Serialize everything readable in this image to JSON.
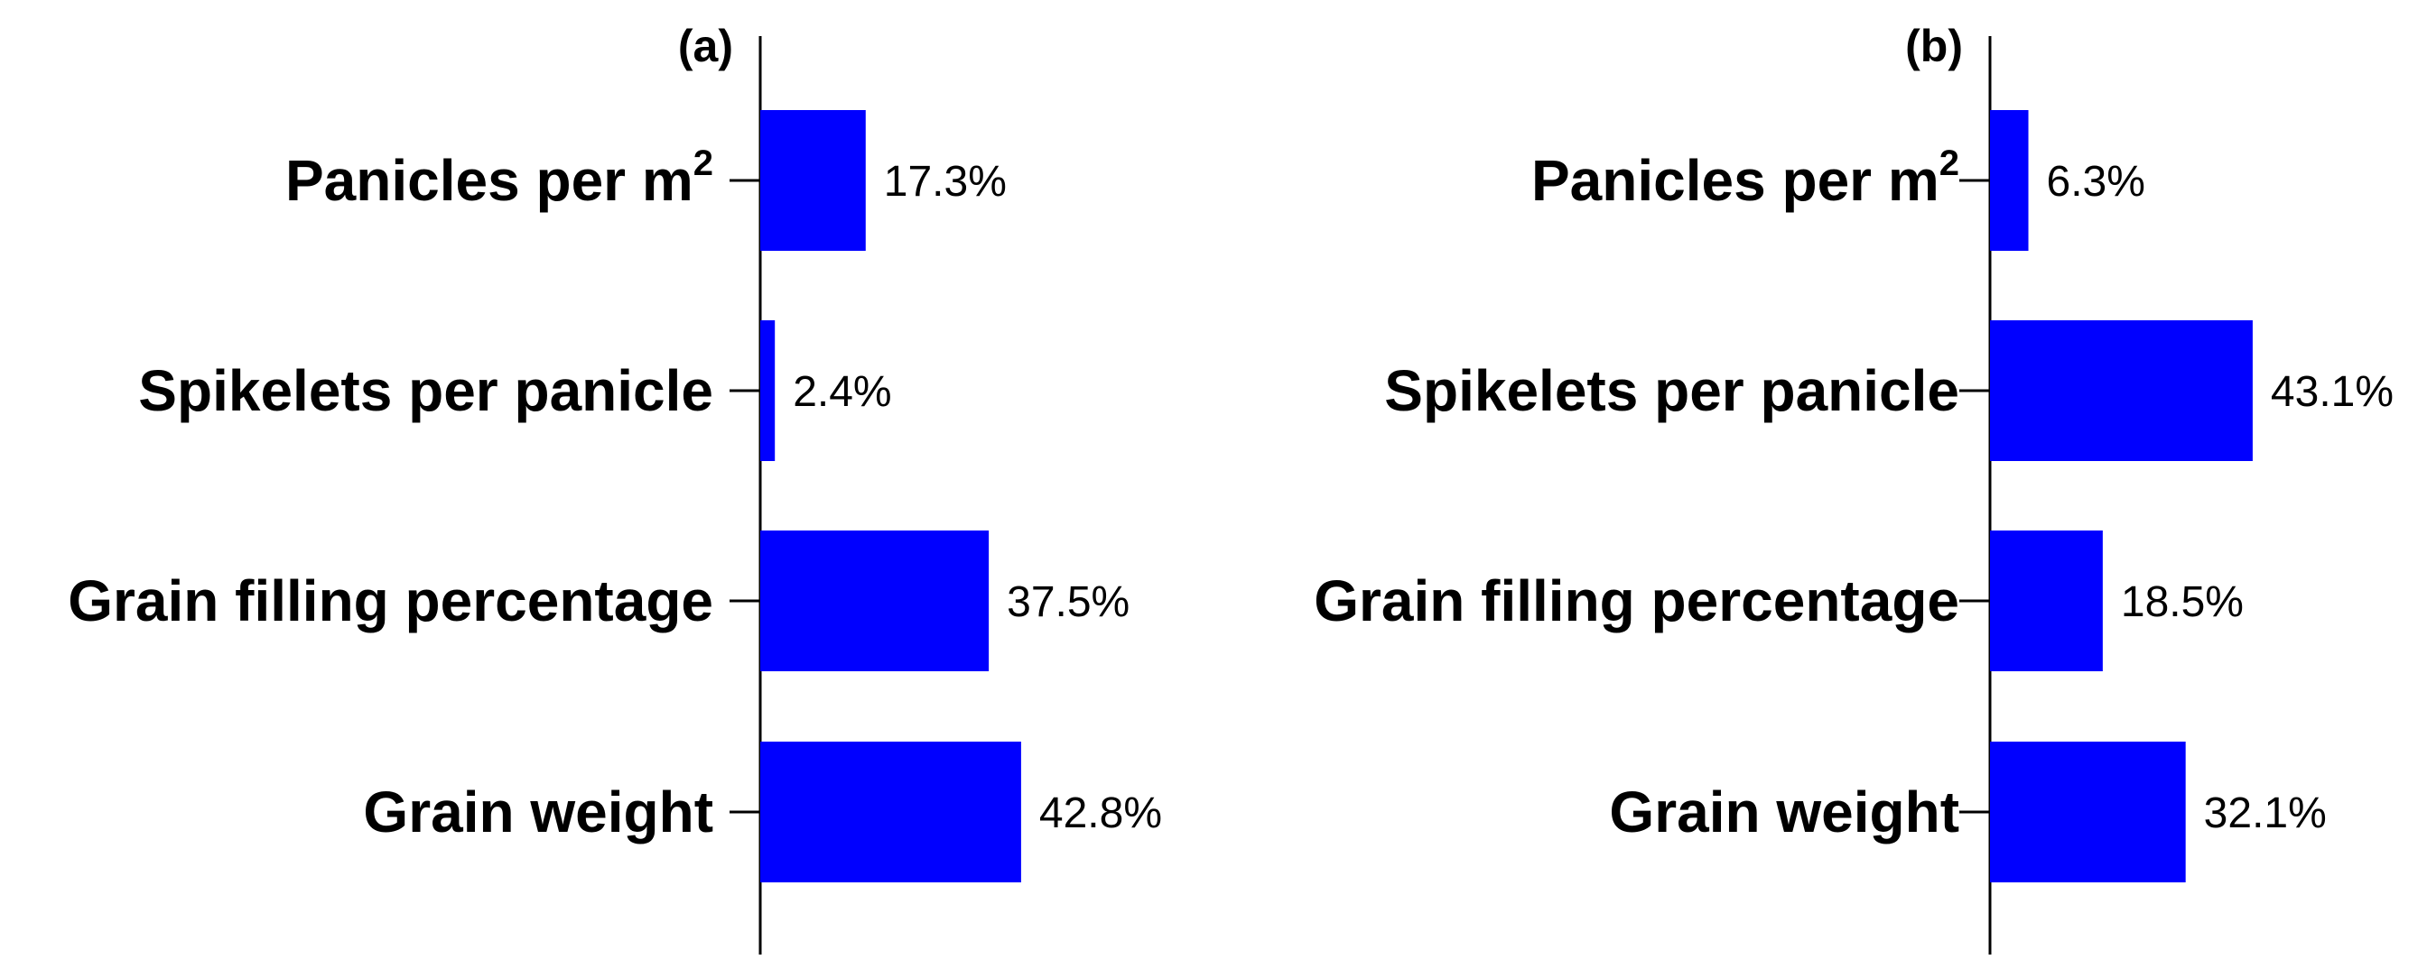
{
  "chart_data": [
    {
      "type": "bar",
      "orientation": "horizontal",
      "panel_label": "(a)",
      "categories": [
        "Panicles per m",
        "Spikelets per panicle",
        "Grain filling percentage",
        "Grain weight"
      ],
      "category_superscripts": [
        "2",
        "",
        "",
        ""
      ],
      "values": [
        17.3,
        2.4,
        37.5,
        42.8
      ],
      "value_labels": [
        "17.3%",
        "2.4%",
        "37.5%",
        "42.8%"
      ],
      "bar_color": "#0000ff",
      "xlim": [
        0,
        100
      ],
      "grid": false
    },
    {
      "type": "bar",
      "orientation": "horizontal",
      "panel_label": "(b)",
      "categories": [
        "Panicles per m",
        "Spikelets per panicle",
        "Grain filling percentage",
        "Grain weight"
      ],
      "category_superscripts": [
        "2",
        "",
        "",
        ""
      ],
      "values": [
        6.3,
        43.1,
        18.5,
        32.1
      ],
      "value_labels": [
        "6.3%",
        "43.1%",
        "18.5%",
        "32.1%"
      ],
      "bar_color": "#0000ff",
      "xlim": [
        0,
        100
      ],
      "grid": false
    }
  ]
}
